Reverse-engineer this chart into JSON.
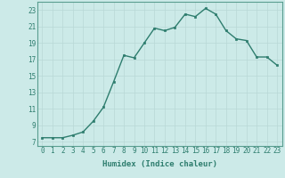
{
  "x": [
    0,
    1,
    2,
    3,
    4,
    5,
    6,
    7,
    8,
    9,
    10,
    11,
    12,
    13,
    14,
    15,
    16,
    17,
    18,
    19,
    20,
    21,
    22,
    23
  ],
  "y": [
    7.5,
    7.5,
    7.5,
    7.8,
    8.2,
    9.5,
    11.2,
    14.3,
    17.5,
    17.2,
    19.0,
    20.8,
    20.5,
    20.9,
    22.5,
    22.2,
    23.2,
    22.5,
    20.5,
    19.5,
    19.3,
    17.3,
    17.3,
    16.3
  ],
  "line_color": "#2e7d6e",
  "marker": "s",
  "markersize": 1.8,
  "linewidth": 1.0,
  "xlabel": "Humidex (Indice chaleur)",
  "xlim": [
    -0.5,
    23.5
  ],
  "ylim": [
    6.5,
    24.0
  ],
  "yticks": [
    7,
    9,
    11,
    13,
    15,
    17,
    19,
    21,
    23
  ],
  "xticks": [
    0,
    1,
    2,
    3,
    4,
    5,
    6,
    7,
    8,
    9,
    10,
    11,
    12,
    13,
    14,
    15,
    16,
    17,
    18,
    19,
    20,
    21,
    22,
    23
  ],
  "bg_color": "#cceae8",
  "grid_color": "#b8d8d6",
  "xlabel_fontsize": 6.5,
  "tick_fontsize": 5.5,
  "tick_color": "#2e7d6e",
  "spine_color": "#5a9e90"
}
